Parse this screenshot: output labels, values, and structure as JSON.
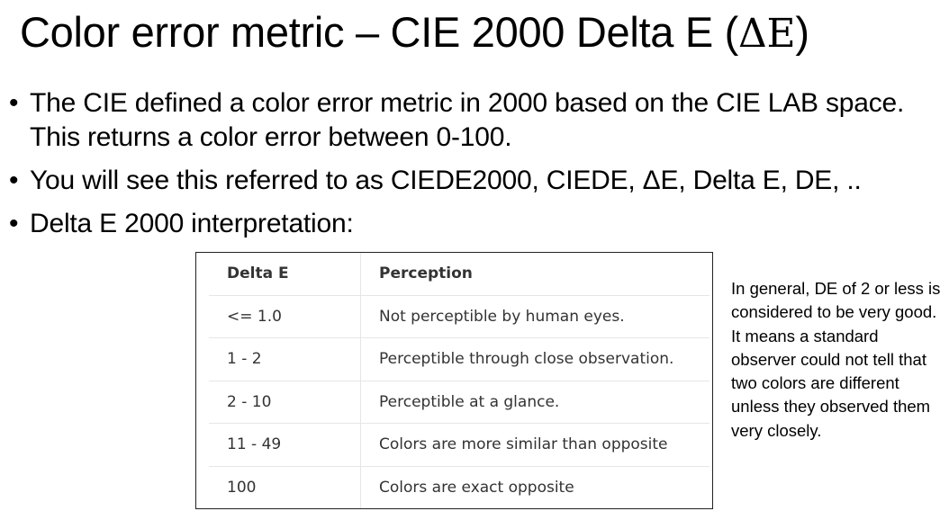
{
  "slide": {
    "title": "Color error metric – CIE 2000 Delta E (",
    "title_symbol": "ΔE",
    "title_end": ")",
    "bullets": [
      "The CIE defined a color error metric in 2000 based on the CIE LAB space. This returns a color error between 0-100.",
      "You will see this referred to as CIEDE2000, CIEDE, ΔE, Delta E, DE, ..",
      "Delta E 2000 interpretation:"
    ],
    "bullet_symbol": "•"
  },
  "table": {
    "headers": [
      "Delta E",
      "Perception"
    ],
    "rows": [
      [
        "<= 1.0",
        "Not perceptible by human eyes."
      ],
      [
        "1 - 2",
        "Perceptible through close observation."
      ],
      [
        "2 - 10",
        "Perceptible at a glance."
      ],
      [
        "11 - 49",
        "Colors are more similar than opposite"
      ],
      [
        "100",
        "Colors are exact opposite"
      ]
    ]
  },
  "note": "In general, DE of 2 or less is considered to be very good.  It means a standard observer could not tell that two colors are different unless they observed them very closely."
}
